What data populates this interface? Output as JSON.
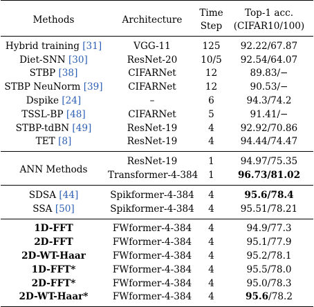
{
  "header": {
    "col1": "Methods",
    "col2": "Architecture",
    "col3_line1": "Time",
    "col3_line2": "Step",
    "col4_line1": "Top-1 acc.",
    "col4_line2": "(CIFAR10/100)"
  },
  "snn_rows": [
    {
      "method": "Hybrid training ",
      "ref": "[31]",
      "arch": "VGG-11",
      "step": "125",
      "acc": "92.22/67.87"
    },
    {
      "method": "Diet-SNN ",
      "ref": "[30]",
      "arch": "ResNet-20",
      "step": "10/5",
      "acc": "92.54/64.07"
    },
    {
      "method": "STBP ",
      "ref": "[38]",
      "arch": "CIFARNet",
      "step": "12",
      "acc": "89.83/−"
    },
    {
      "method": "STBP NeuNorm ",
      "ref": "[39]",
      "arch": "CIFARNet",
      "step": "12",
      "acc": "90.53/−"
    },
    {
      "method": "Dspike ",
      "ref": "[24]",
      "arch": "–",
      "step": "6",
      "acc": "94.3/74.2"
    },
    {
      "method": "TSSL-BP ",
      "ref": "[48]",
      "arch": "CIFARNet",
      "step": "5",
      "acc": "91.41/−"
    },
    {
      "method": "STBP-tdBN ",
      "ref": "[49]",
      "arch": "ResNet-19",
      "step": "4",
      "acc": "92.92/70.86"
    },
    {
      "method": "TET ",
      "ref": "[8]",
      "arch": "ResNet-19",
      "step": "4",
      "acc": "94.44/74.47"
    }
  ],
  "ann": {
    "label": "ANN Methods",
    "rows": [
      {
        "arch": "ResNet-19",
        "step": "1",
        "acc": "94.97/75.35",
        "bold": false
      },
      {
        "arch": "Transformer-4-384",
        "step": "1",
        "acc": "96.73/81.02",
        "bold": true
      }
    ]
  },
  "attn_rows": [
    {
      "method": "SDSA ",
      "ref": "[44]",
      "arch": "Spikformer-4-384",
      "step": "4",
      "acc_bold": "95.6/78.4",
      "acc_rest": ""
    },
    {
      "method": "SSA ",
      "ref": "[50]",
      "arch": "Spikformer-4-384",
      "step": "4",
      "acc_bold": "",
      "acc_rest": "95.51/78.21"
    }
  ],
  "fw_rows": [
    {
      "method": "1D-FFT",
      "arch": "FWformer-4-384",
      "step": "4",
      "acc_bold": "",
      "acc_rest": "94.9/77.3"
    },
    {
      "method": "2D-FFT",
      "arch": "FWformer-4-384",
      "step": "4",
      "acc_bold": "",
      "acc_rest": "95.1/77.9"
    },
    {
      "method": "2D-WT-Haar",
      "arch": "FWformer-4-384",
      "step": "4",
      "acc_bold": "",
      "acc_rest": "95.2/78.1"
    },
    {
      "method": "1D-FFT*",
      "arch": "FWformer-4-384",
      "step": "4",
      "acc_bold": "",
      "acc_rest": "95.5/78.0"
    },
    {
      "method": "2D-FFT*",
      "arch": "FWformer-4-384",
      "step": "4",
      "acc_bold": "",
      "acc_rest": "95.0/78.3"
    },
    {
      "method": "2D-WT-Haar*",
      "arch": "FWformer-4-384",
      "step": "4",
      "acc_bold": "95.6",
      "acc_rest": "/78.2"
    }
  ],
  "colors": {
    "reference_link": "#2b5fb5",
    "text": "#000000",
    "background": "#ffffff"
  }
}
